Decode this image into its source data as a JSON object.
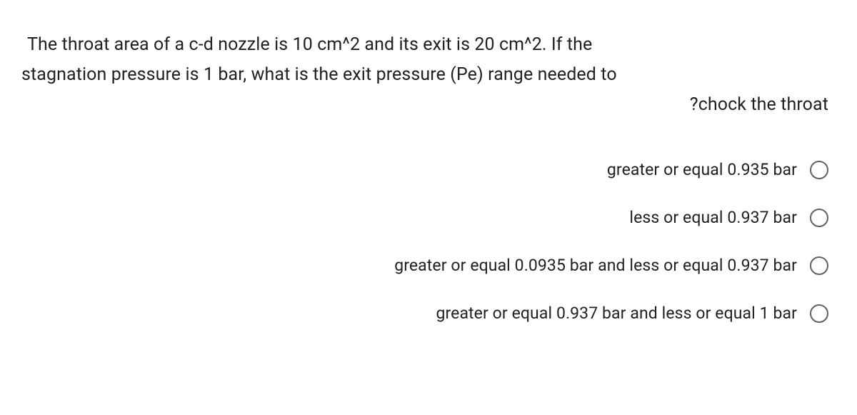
{
  "question": {
    "line1": "The throat area of a c-d nozzle is 10 cm^2 and its exit is 20 cm^2. If the",
    "line2": "stagnation pressure is 1 bar, what is the exit pressure (Pe) range needed to",
    "line3": "?chock the throat"
  },
  "options": [
    {
      "label": "greater or equal 0.935 bar"
    },
    {
      "label": "less or equal 0.937 bar"
    },
    {
      "label": "greater or equal 0.0935 bar and less or equal 0.937 bar"
    },
    {
      "label": "greater or equal 0.937 bar and less or equal 1 bar"
    }
  ],
  "colors": {
    "text": "#202124",
    "radio_border": "#5f6368",
    "background": "#ffffff"
  },
  "typography": {
    "question_fontsize": 25,
    "option_fontsize": 23,
    "font_family": "Google Sans, Roboto, Arial, sans-serif"
  }
}
